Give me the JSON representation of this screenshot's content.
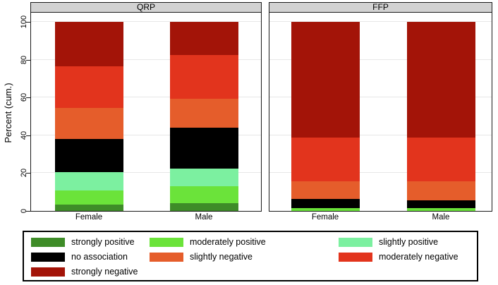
{
  "chart_data": {
    "type": "bar",
    "subtype": "stacked-100-percent",
    "ylabel": "Percent (cum.)",
    "ylim": [
      0,
      100
    ],
    "yticks": [
      0,
      20,
      40,
      60,
      80,
      100
    ],
    "grid": true,
    "legend_position": "bottom",
    "panels": [
      {
        "title": "QRP",
        "categories": [
          "Female",
          "Male"
        ],
        "series": [
          {
            "name": "strongly positive",
            "values": [
              3.5,
              4
            ]
          },
          {
            "name": "moderately positive",
            "values": [
              7.5,
              9
            ]
          },
          {
            "name": "slightly positive",
            "values": [
              9.5,
              9.5
            ]
          },
          {
            "name": "no association",
            "values": [
              17.5,
              21.5
            ]
          },
          {
            "name": "slightly negative",
            "values": [
              16.5,
              15.5
            ]
          },
          {
            "name": "moderately negative",
            "values": [
              22,
              23
            ]
          },
          {
            "name": "strongly negative",
            "values": [
              23.5,
              17.5
            ]
          }
        ]
      },
      {
        "title": "FFP",
        "categories": [
          "Female",
          "Male"
        ],
        "series": [
          {
            "name": "strongly positive",
            "values": [
              0,
              0
            ]
          },
          {
            "name": "moderately positive",
            "values": [
              1.5,
              1.5
            ]
          },
          {
            "name": "slightly positive",
            "values": [
              0,
              0
            ]
          },
          {
            "name": "no association",
            "values": [
              5,
              4
            ]
          },
          {
            "name": "slightly negative",
            "values": [
              9,
              10
            ]
          },
          {
            "name": "moderately negative",
            "values": [
              23.5,
              23.5
            ]
          },
          {
            "name": "strongly negative",
            "values": [
              61,
              61
            ]
          }
        ]
      }
    ],
    "legend": [
      {
        "label": "strongly positive",
        "color": "#3e8c28"
      },
      {
        "label": "moderately positive",
        "color": "#6be33a"
      },
      {
        "label": "slightly positive",
        "color": "#7cf0a0"
      },
      {
        "label": "no association",
        "color": "#000000"
      },
      {
        "label": "slightly negative",
        "color": "#e55d2b"
      },
      {
        "label": "moderately negative",
        "color": "#e2341d"
      },
      {
        "label": "strongly negative",
        "color": "#a31408"
      }
    ]
  }
}
